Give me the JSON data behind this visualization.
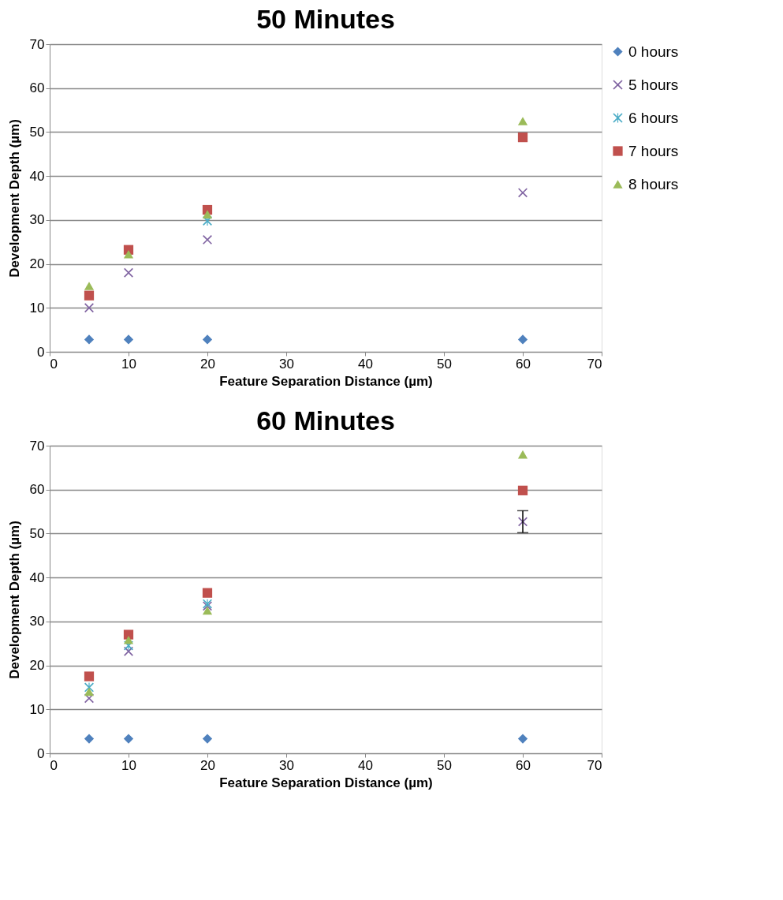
{
  "chart_data": [
    {
      "type": "scatter",
      "title": "50 Minutes",
      "xlabel": "Feature Separation Distance (µm)",
      "ylabel": "Development Depth (µm)",
      "x": [
        5,
        10,
        20,
        60
      ],
      "xlim": [
        0,
        70
      ],
      "xticks": [
        0,
        10,
        20,
        30,
        40,
        50,
        60,
        70
      ],
      "ylim": [
        0,
        70
      ],
      "yticks": [
        0,
        10,
        20,
        30,
        40,
        50,
        60,
        70
      ],
      "grid": "y",
      "legend": "right",
      "series": [
        {
          "name": "0 hours",
          "color": "#4f81bd",
          "marker": "diamond",
          "values": [
            2.8,
            2.8,
            2.8,
            2.8
          ]
        },
        {
          "name": "5 hours",
          "color": "#8064a2",
          "marker": "cross",
          "values": [
            10.0,
            18.0,
            25.5,
            36.2
          ]
        },
        {
          "name": "6 hours",
          "color": "#4bacc6",
          "marker": "star",
          "values": [
            null,
            null,
            29.8,
            null
          ]
        },
        {
          "name": "7 hours",
          "color": "#c0504d",
          "marker": "square",
          "values": [
            12.8,
            23.2,
            32.3,
            48.8
          ]
        },
        {
          "name": "8 hours",
          "color": "#9bbb59",
          "marker": "triangle",
          "values": [
            15.0,
            22.2,
            31.3,
            52.5
          ]
        }
      ]
    },
    {
      "type": "scatter",
      "title": "60 Minutes",
      "xlabel": "Feature Separation Distance (µm)",
      "ylabel": "Development Depth (µm)",
      "x": [
        5,
        10,
        20,
        60
      ],
      "xlim": [
        0,
        70
      ],
      "xticks": [
        0,
        10,
        20,
        30,
        40,
        50,
        60,
        70
      ],
      "ylim": [
        0,
        70
      ],
      "yticks": [
        0,
        10,
        20,
        30,
        40,
        50,
        60,
        70
      ],
      "grid": "y",
      "legend": "right",
      "series": [
        {
          "name": "0 hours",
          "color": "#4f81bd",
          "marker": "diamond",
          "values": [
            3.3,
            3.3,
            3.3,
            3.3
          ]
        },
        {
          "name": "5 hours",
          "color": "#8064a2",
          "marker": "cross",
          "values": [
            12.5,
            23.2,
            33.5,
            52.7
          ],
          "errors": [
            null,
            null,
            null,
            2.5
          ]
        },
        {
          "name": "6 hours",
          "color": "#4bacc6",
          "marker": "star",
          "values": [
            15.0,
            24.5,
            34.0,
            null
          ]
        },
        {
          "name": "7 hours",
          "color": "#c0504d",
          "marker": "square",
          "values": [
            17.5,
            27.0,
            36.5,
            59.8
          ]
        },
        {
          "name": "8 hours",
          "color": "#9bbb59",
          "marker": "triangle",
          "values": [
            14.0,
            25.8,
            32.5,
            68.0
          ]
        }
      ]
    }
  ]
}
